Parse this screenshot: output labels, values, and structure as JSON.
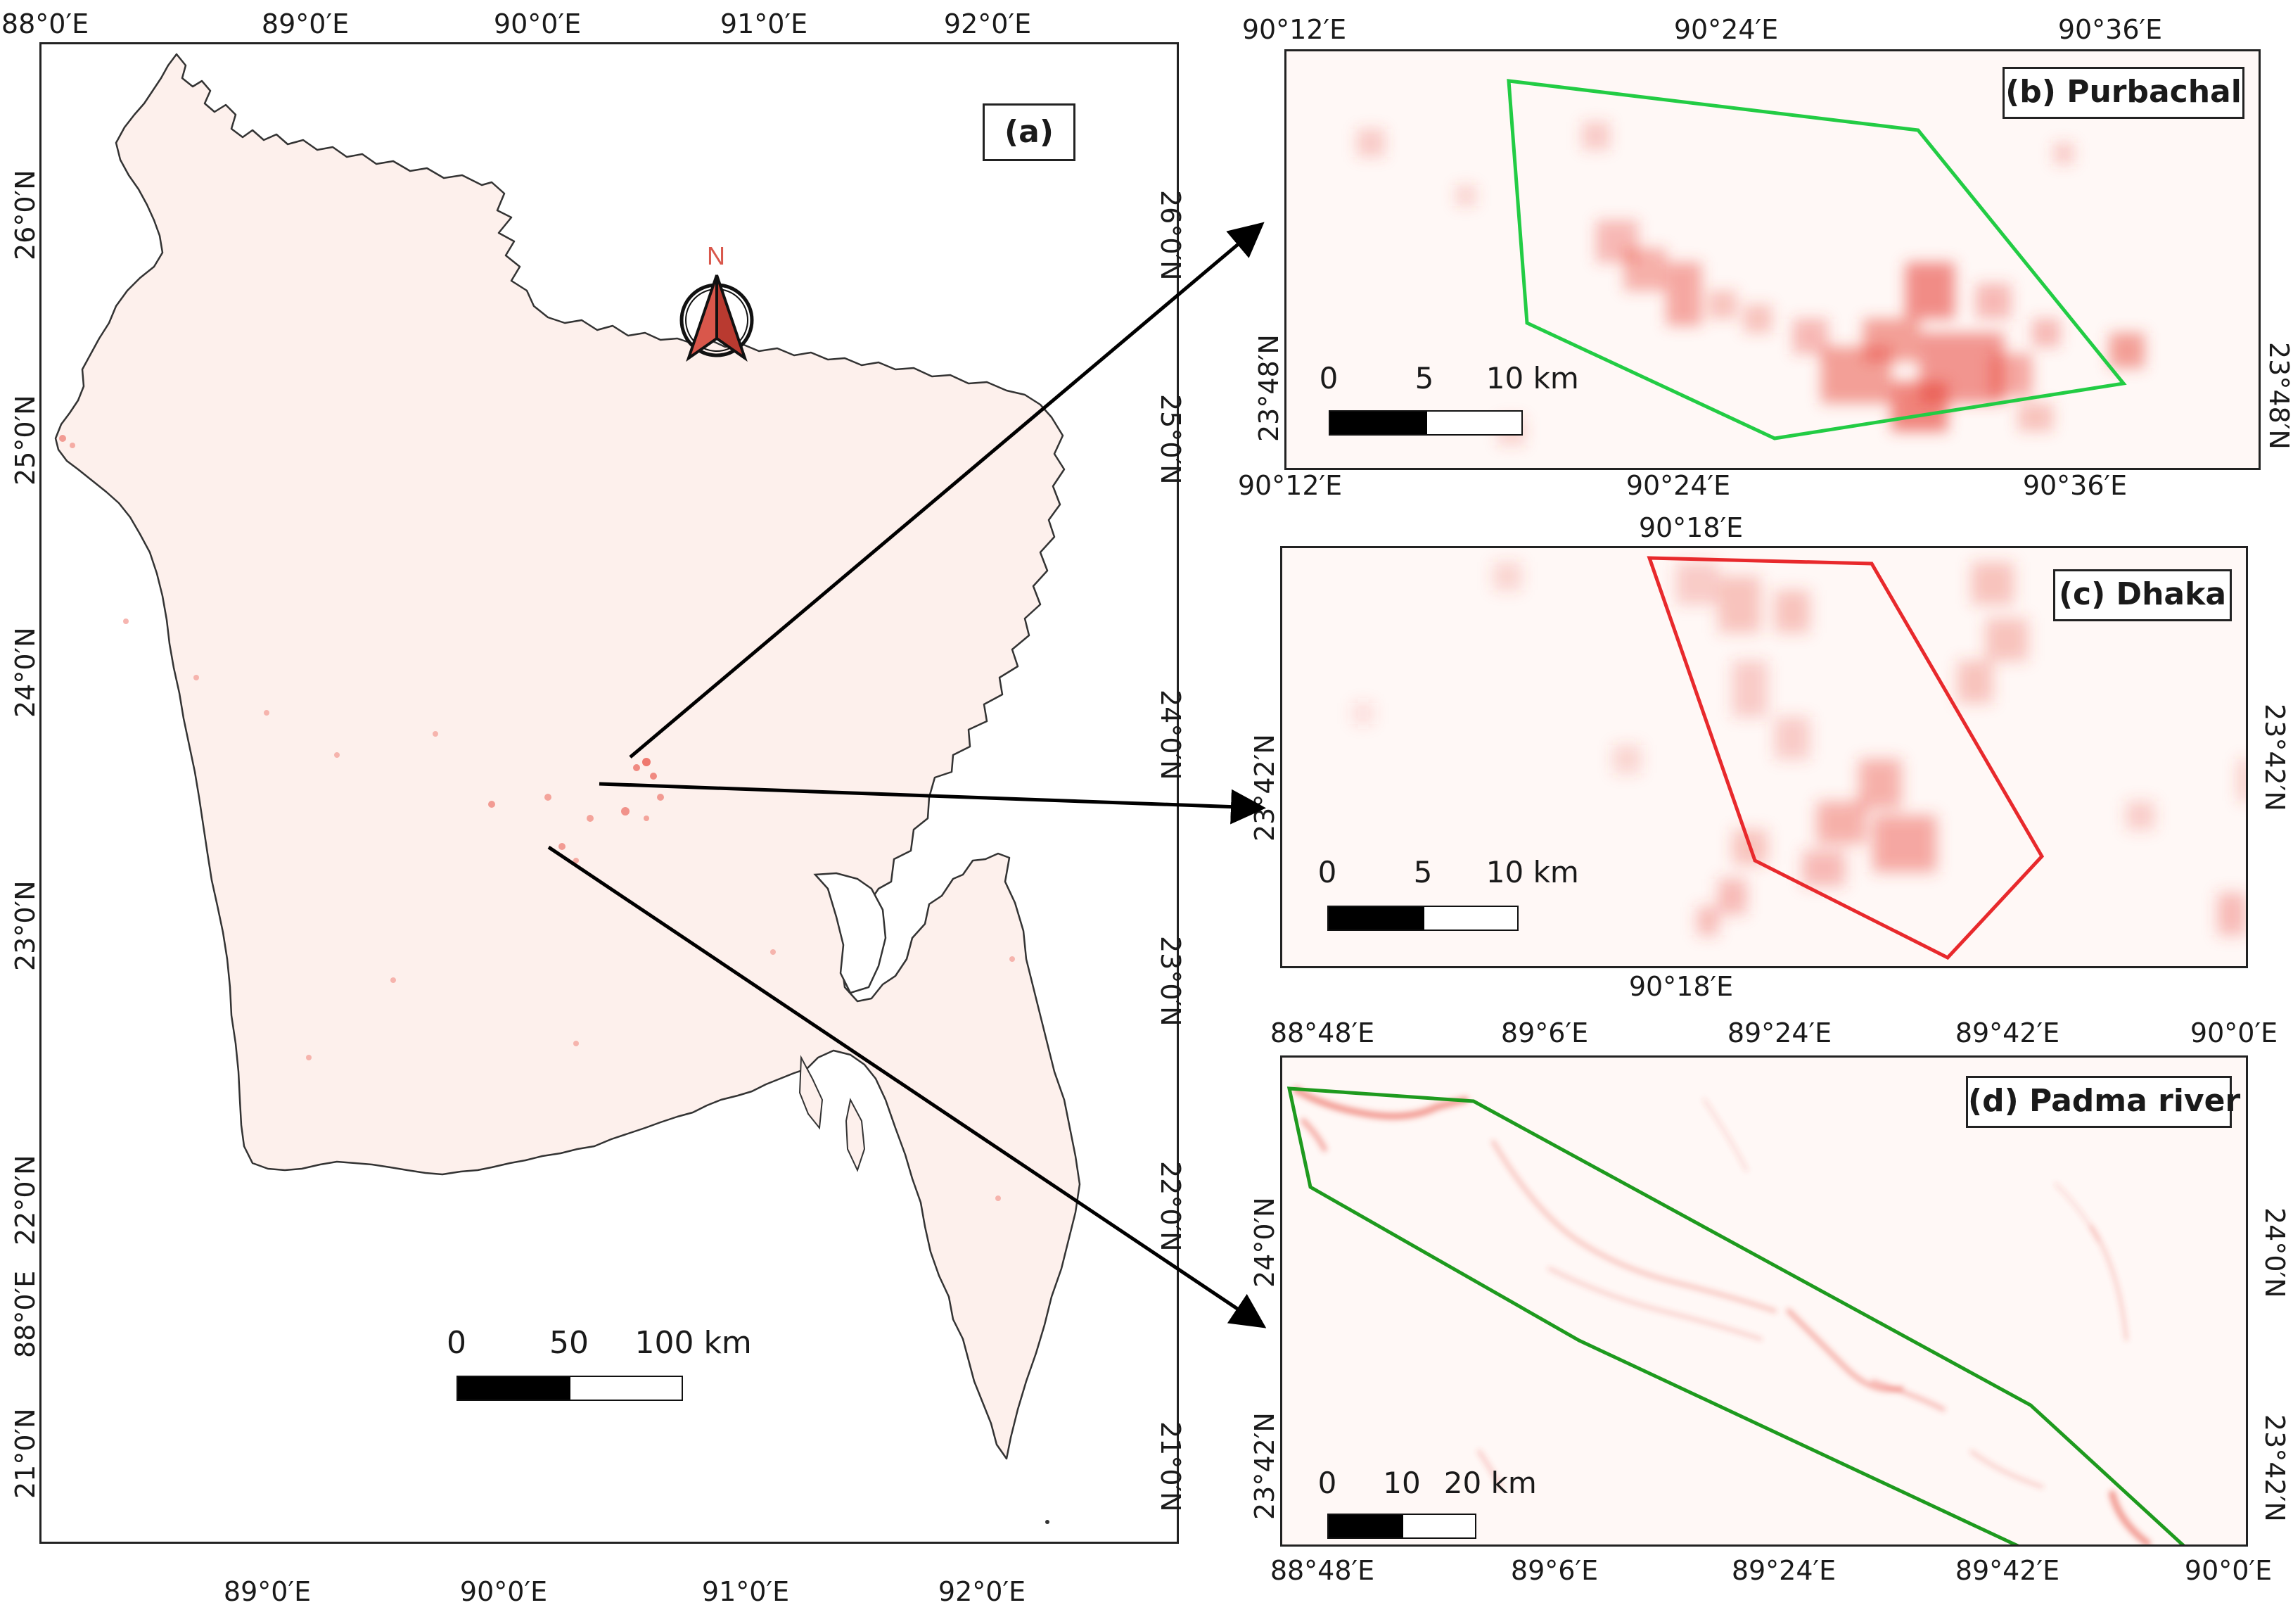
{
  "map_a": {
    "title": "(a)",
    "north_label": "N",
    "lon_top": [
      "88°0′E",
      "89°0′E",
      "90°0′E",
      "91°0′E",
      "92°0′E"
    ],
    "lon_bottom": [
      "89°0′E",
      "90°0′E",
      "91°0′E",
      "92°0′E"
    ],
    "lat_left": [
      "26°0′N",
      "25°0′N",
      "24°0′N",
      "23°0′N",
      "22°0′N",
      "88°0′E",
      "21°0′N"
    ],
    "lat_right": [
      "26°0′N",
      "25°0′N",
      "24°0′N",
      "23°0′N",
      "22°0′N",
      "21°0′N"
    ],
    "scale": {
      "ticks": [
        "0",
        "50",
        "100 km"
      ]
    },
    "colors": {
      "land": "#fdf0ec",
      "outline": "#333333",
      "hotspot": "#e8463a"
    }
  },
  "map_b": {
    "title": "(b) Purbachal",
    "lon_top": [
      "90°12′E",
      "90°24′E",
      "90°36′E"
    ],
    "lon_bottom": [
      "90°12′E",
      "90°24′E",
      "90°36′E"
    ],
    "lat_left": [
      "23°48′N"
    ],
    "lat_right": [
      "23°48′N"
    ],
    "scale": {
      "ticks": [
        "0",
        "5",
        "10 km"
      ]
    },
    "colors": {
      "polygon": "#22cc44",
      "hotspot": "#e8463a"
    }
  },
  "map_c": {
    "title": "(c) Dhaka",
    "lon_top": [
      "90°18′E"
    ],
    "lon_bottom": [
      "90°18′E"
    ],
    "lat_left": [
      "23°42′N"
    ],
    "lat_right": [
      "23°42′N"
    ],
    "scale": {
      "ticks": [
        "0",
        "5",
        "10 km"
      ]
    },
    "colors": {
      "polygon": "#e8292c",
      "hotspot": "#e8463a"
    }
  },
  "map_d": {
    "title": "(d) Padma river",
    "lon_top": [
      "88°48′E",
      "89°6′E",
      "89°24′E",
      "89°42′E",
      "90°0′E"
    ],
    "lon_bottom": [
      "88°48′E",
      "89°6′E",
      "89°24′E",
      "89°42′E",
      "90°0′E"
    ],
    "lat_left": [
      "24°0′N",
      "23°42′N"
    ],
    "lat_right": [
      "24°0′N",
      "23°42′N"
    ],
    "scale": {
      "ticks": [
        "0",
        "10",
        "20 km"
      ]
    },
    "colors": {
      "polygon": "#1e9a1e",
      "hotspot": "#e8463a"
    }
  }
}
